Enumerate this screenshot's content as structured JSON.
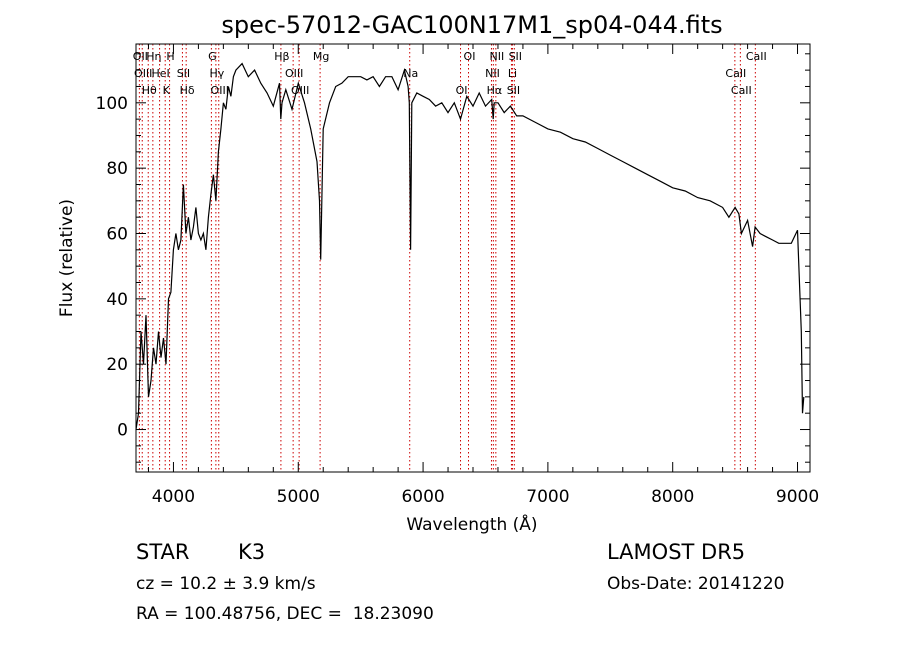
{
  "chart_data": {
    "type": "line",
    "title": "spec-57012-GAC100N17M1_sp04-044.fits",
    "xlabel": "Wavelength (Å)",
    "ylabel": "Flux (relative)",
    "xlim": [
      3700,
      9100
    ],
    "ylim": [
      -13,
      118
    ],
    "xticks": [
      4000,
      5000,
      6000,
      7000,
      8000,
      9000
    ],
    "yticks": [
      0,
      20,
      40,
      60,
      80,
      100
    ],
    "grid": false,
    "line_color": "#000000",
    "marker_color": "#cc0000",
    "series": [
      {
        "x": [
          3700,
          3720,
          3740,
          3760,
          3780,
          3800,
          3820,
          3840,
          3860,
          3880,
          3900,
          3920,
          3940,
          3960,
          3980,
          4000,
          4020,
          4040,
          4060,
          4080,
          4100,
          4120,
          4140,
          4160,
          4180,
          4200,
          4220,
          4240,
          4260,
          4280,
          4300,
          4320,
          4340,
          4360,
          4380,
          4400,
          4420,
          4440,
          4460,
          4480,
          4500,
          4550,
          4600,
          4650,
          4700,
          4750,
          4800,
          4850,
          4860,
          4870,
          4900,
          4950,
          5000,
          5050,
          5100,
          5150,
          5170,
          5180,
          5200,
          5250,
          5300,
          5350,
          5400,
          5450,
          5500,
          5550,
          5600,
          5650,
          5700,
          5750,
          5800,
          5850,
          5880,
          5890,
          5900,
          5910,
          5950,
          6000,
          6050,
          6100,
          6150,
          6200,
          6250,
          6300,
          6350,
          6400,
          6450,
          6500,
          6550,
          6562,
          6570,
          6600,
          6650,
          6700,
          6750,
          6800,
          6900,
          7000,
          7100,
          7200,
          7300,
          7400,
          7500,
          7600,
          7700,
          7800,
          7900,
          8000,
          8100,
          8200,
          8300,
          8400,
          8450,
          8500,
          8530,
          8550,
          8600,
          8640,
          8660,
          8700,
          8750,
          8800,
          8850,
          8900,
          8950,
          9000,
          9030,
          9040,
          9050
        ],
        "y": [
          0,
          5,
          30,
          20,
          35,
          10,
          15,
          25,
          20,
          30,
          22,
          28,
          20,
          40,
          42,
          55,
          60,
          55,
          58,
          75,
          60,
          65,
          58,
          62,
          68,
          60,
          58,
          60,
          55,
          65,
          72,
          78,
          70,
          85,
          92,
          100,
          98,
          105,
          102,
          108,
          110,
          112,
          108,
          110,
          106,
          103,
          99,
          106,
          95,
          100,
          104,
          98,
          106,
          100,
          92,
          82,
          70,
          52,
          92,
          100,
          105,
          106,
          108,
          108,
          108,
          107,
          108,
          105,
          108,
          108,
          104,
          110,
          105,
          100,
          55,
          100,
          103,
          102,
          101,
          99,
          100,
          97,
          100,
          95,
          102,
          99,
          103,
          99,
          101,
          95,
          100,
          100,
          97,
          99,
          96,
          96,
          94,
          92,
          91,
          89,
          88,
          86,
          84,
          82,
          80,
          78,
          76,
          74,
          73,
          71,
          70,
          68,
          65,
          68,
          66,
          60,
          64,
          56,
          62,
          60,
          59,
          58,
          57,
          57,
          57,
          61,
          30,
          5,
          10
        ]
      }
    ],
    "line_markers": [
      {
        "x": 3727,
        "label": "OII"
      },
      {
        "x": 3750,
        "label": "OIII"
      },
      {
        "x": 3798,
        "label": "Hθ"
      },
      {
        "x": 3835,
        "label": "Hη"
      },
      {
        "x": 3889,
        "label": "HeI"
      },
      {
        "x": 3934,
        "label": "K"
      },
      {
        "x": 3969,
        "label": "H"
      },
      {
        "x": 4072,
        "label": "SII"
      },
      {
        "x": 4102,
        "label": "Hδ"
      },
      {
        "x": 4304,
        "label": "G"
      },
      {
        "x": 4340,
        "label": "Hγ"
      },
      {
        "x": 4363,
        "label": "OIII"
      },
      {
        "x": 4861,
        "label": "Hβ"
      },
      {
        "x": 4959,
        "label": "OIII"
      },
      {
        "x": 5007,
        "label": "OIII"
      },
      {
        "x": 5175,
        "label": "Mg"
      },
      {
        "x": 5893,
        "label": "Na"
      },
      {
        "x": 6300,
        "label": "OI"
      },
      {
        "x": 6364,
        "label": "OI"
      },
      {
        "x": 6548,
        "label": "NII"
      },
      {
        "x": 6563,
        "label": "Hα"
      },
      {
        "x": 6583,
        "label": "NII"
      },
      {
        "x": 6708,
        "label": "Li"
      },
      {
        "x": 6716,
        "label": "SII"
      },
      {
        "x": 6731,
        "label": "SII"
      },
      {
        "x": 8498,
        "label": "CaII"
      },
      {
        "x": 8542,
        "label": "CaII"
      },
      {
        "x": 8662,
        "label": "CaII"
      }
    ]
  },
  "info": {
    "object_class": "STAR",
    "subclass": "K3",
    "redshift_line": "cz = 10.2 ± 3.9 km/s",
    "coords_line": "RA = 100.48756, DEC =  18.23090",
    "survey": "LAMOST DR5",
    "obs_date": "Obs-Date: 20141220"
  }
}
